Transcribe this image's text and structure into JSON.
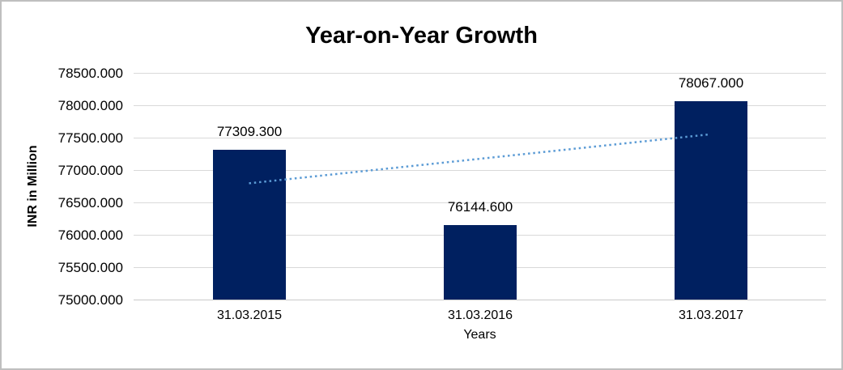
{
  "chart": {
    "title": "Year-on-Year Growth",
    "y_axis_title": "INR in Million",
    "x_axis_title": "Years"
  },
  "chart_data": {
    "type": "bar",
    "title": "Year-on-Year Growth",
    "xlabel": "Years",
    "ylabel": "INR in Million",
    "categories": [
      "31.03.2015",
      "31.03.2016",
      "31.03.2017"
    ],
    "values": [
      77309.3,
      76144.6,
      78067.0
    ],
    "data_labels": [
      "77309.300",
      "76144.600",
      "78067.000"
    ],
    "ylim": [
      75000,
      78500
    ],
    "ytick_step": 500,
    "ytick_labels": [
      "78500.000",
      "78000.000",
      "77500.000",
      "77000.000",
      "76500.000",
      "76000.000",
      "75500.000",
      "75000.000"
    ],
    "grid": true,
    "legend": "none",
    "bar_color": "#002060",
    "gridline_color": "#d9d9d9",
    "trendline": {
      "style": "dotted",
      "color": "#5b9bd5",
      "start_value": 76795,
      "end_value": 77552
    }
  }
}
